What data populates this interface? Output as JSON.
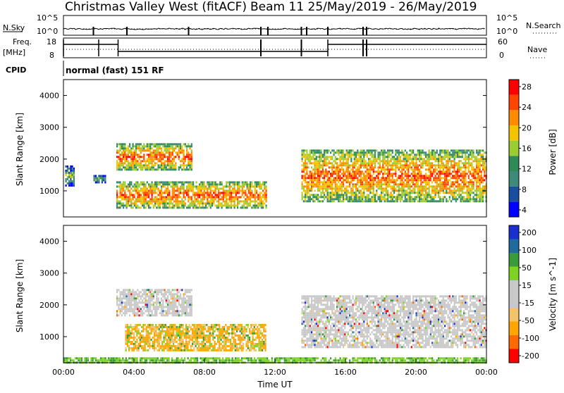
{
  "header": {
    "title": "Christmas Valley West (fitACF)",
    "beam_info": "Beam 11 25/May/2019 - 26/May/2019"
  },
  "strip": {
    "nsky_label": "N.Sky",
    "nsearch_label": "N.Search",
    "nsky_ticks": [
      "10^5",
      "10^0"
    ],
    "nsearch_ticks": [
      "10^5",
      "10^0"
    ],
    "freq_label": "Freq.",
    "freq_unit": "[MHz]",
    "freq_ticks": [
      "18",
      "8"
    ],
    "nave_label": "Nave",
    "nave_ticks": [
      "60",
      "0"
    ],
    "cpid_label": "CPID",
    "mode_text": "normal (fast) 151 RF"
  },
  "colors": {
    "power_scale": [
      "#0000ff",
      "#1a4fa0",
      "#3e8a78",
      "#2e8b57",
      "#9acd32",
      "#f5c400",
      "#ff8c00",
      "#ff4500",
      "#ff0000"
    ],
    "velocity_scale": [
      "#ff0000",
      "#ff6a00",
      "#ffa500",
      "#f2c46a",
      "#c8c8c8",
      "#c8c8c8",
      "#7ed321",
      "#3a9b3a",
      "#1f6b9e",
      "#1a2fd0"
    ]
  },
  "chart_data": [
    {
      "type": "heatmap",
      "panel": "power",
      "ylabel": "Slant Range [km]",
      "ylim": [
        180,
        4500
      ],
      "yticks": [
        "4000",
        "3000",
        "2000",
        "1000"
      ],
      "colorbar_label": "Power [dB]",
      "colorbar_ticks": [
        "28",
        "24",
        "20",
        "16",
        "12",
        "8",
        "4"
      ],
      "echo_regions": [
        {
          "t_start": 0.1,
          "t_end": 0.6,
          "r_low": 1200,
          "r_high": 1800,
          "level": "mid"
        },
        {
          "t_start": 1.7,
          "t_end": 2.4,
          "r_low": 1300,
          "r_high": 1500,
          "level": "mid"
        },
        {
          "t_start": 3.0,
          "t_end": 7.3,
          "r_low": 1700,
          "r_high": 2500,
          "level": "high"
        },
        {
          "t_start": 3.0,
          "t_end": 11.5,
          "r_low": 500,
          "r_high": 1300,
          "level": "high"
        },
        {
          "t_start": 13.5,
          "t_end": 24.0,
          "r_low": 700,
          "r_high": 2300,
          "level": "high"
        }
      ]
    },
    {
      "type": "heatmap",
      "panel": "velocity",
      "ylabel": "Slant Range [km]",
      "ylim": [
        180,
        4500
      ],
      "yticks": [
        "4000",
        "3000",
        "2000",
        "1000"
      ],
      "xlabel": "Time UT",
      "xticks": [
        "00:00",
        "04:00",
        "08:00",
        "12:00",
        "16:00",
        "20:00",
        "00:00"
      ],
      "colorbar_label": "Velocity [m s^-1]",
      "colorbar_ticks": [
        "200",
        "100",
        "50",
        "15",
        "-15",
        "-50",
        "-100",
        "-200"
      ],
      "echo_regions": [
        {
          "t_start": 3.0,
          "t_end": 7.3,
          "r_low": 1700,
          "r_high": 2500,
          "velocity": "near-zero"
        },
        {
          "t_start": 3.5,
          "t_end": 11.5,
          "r_low": 600,
          "r_high": 1400,
          "velocity": "negative"
        },
        {
          "t_start": 13.5,
          "t_end": 24.0,
          "r_low": 700,
          "r_high": 2300,
          "velocity": "near-zero"
        },
        {
          "t_start": 0.0,
          "t_end": 24.0,
          "r_low": 180,
          "r_high": 350,
          "velocity": "positive"
        }
      ]
    }
  ]
}
